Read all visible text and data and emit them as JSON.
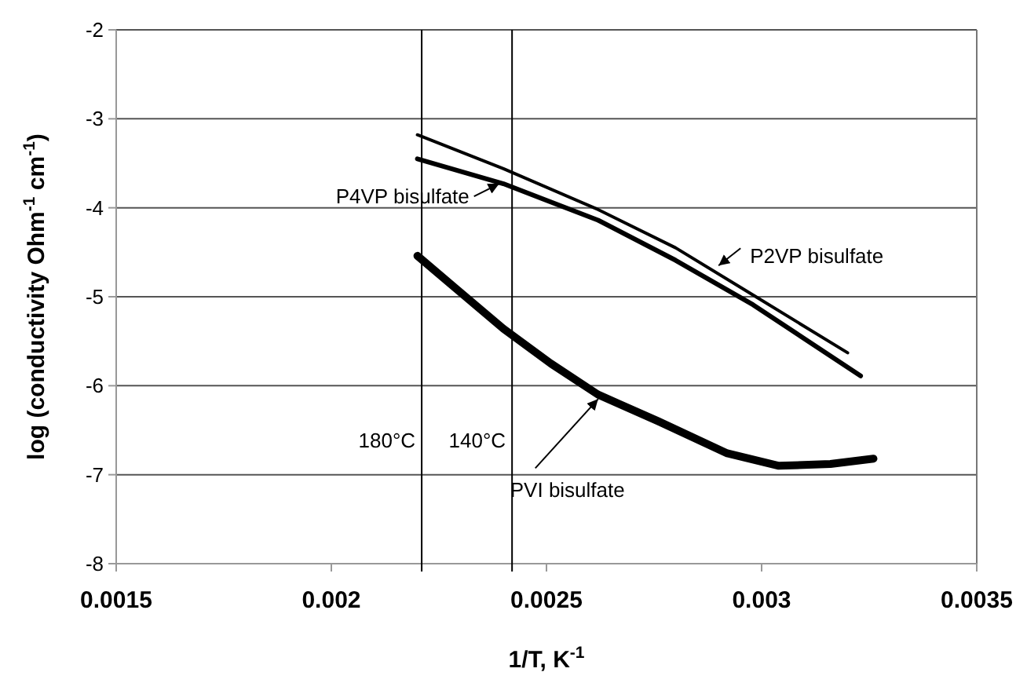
{
  "chart_data": {
    "type": "line",
    "xlabel": "1/T, K$^{-1}$",
    "ylabel": "log (conductivity Ohm$^{-1}$ cm$^{-1}$)",
    "xlim": [
      0.0015,
      0.0035
    ],
    "xticks": [
      0.0015,
      0.002,
      0.0025,
      0.003,
      0.0035
    ],
    "ylim": [
      -8,
      -2
    ],
    "yticks": [
      -8,
      -7,
      -6,
      -5,
      -4,
      -3,
      -2
    ],
    "grid": "y",
    "line_style": "solid",
    "series": [
      {
        "color": "#000000",
        "x": [
          0.0022,
          0.0024,
          0.00262,
          0.0028,
          0.00298,
          0.0032
        ],
        "values": [
          -3.18,
          -3.56,
          -4.02,
          -4.45,
          -4.98,
          -5.63
        ]
      },
      {
        "color": "#000000",
        "x": [
          0.0022,
          0.0024,
          0.00262,
          0.0028,
          0.00298,
          0.00323
        ],
        "values": [
          -3.45,
          -3.73,
          -4.14,
          -4.59,
          -5.09,
          -5.89
        ]
      },
      {
        "color": "#000000",
        "x": [
          0.0022,
          0.00229,
          0.0024,
          0.00251,
          0.00262,
          0.00276,
          0.00292,
          0.00304,
          0.00316,
          0.00326
        ],
        "values": [
          -4.54,
          -4.91,
          -5.36,
          -5.75,
          -6.1,
          -6.4,
          -6.76,
          -6.9,
          -6.88,
          -6.82
        ]
      }
    ],
    "ref_lines": [
      {
        "axis": "x",
        "value": 0.00221,
        "label": "180°C",
        "color": "#000000"
      },
      {
        "axis": "x",
        "value": 0.00242,
        "label": "140°C",
        "color": "#000000"
      }
    ],
    "annotations": [
      {
        "text": "P4VP bisulfate",
        "x": 0.00239,
        "y": -3.73
      },
      {
        "text": "P2VP bisulfate",
        "x": 0.0029,
        "y": -4.65
      },
      {
        "text": "PVI  bisulfate",
        "x": 0.00262,
        "y": -6.15
      }
    ]
  }
}
